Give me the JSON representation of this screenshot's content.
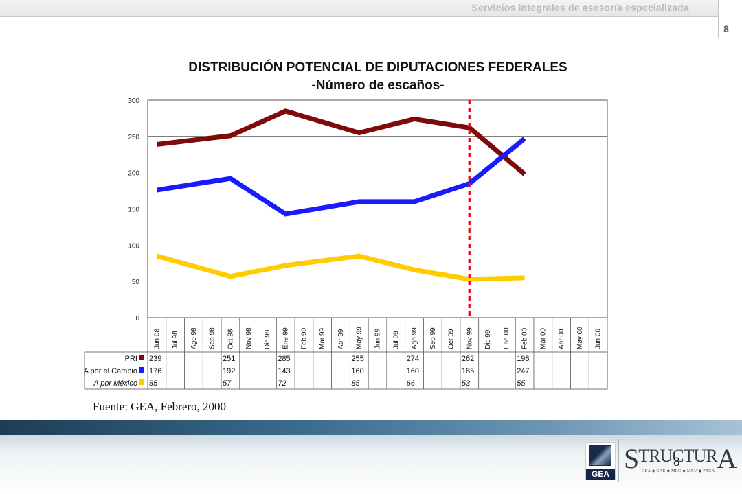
{
  "header": {
    "text": "Servicios integrales de asesoría especializada",
    "page_number": "8"
  },
  "chart_data": {
    "type": "line",
    "title": "DISTRIBUCIÓN POTENCIAL DE DIPUTACIONES FEDERALES",
    "subtitle": "-Número de escaños-",
    "categories": [
      "Jun 98",
      "Jul 98",
      "Ago 98",
      "Sep 98",
      "Oct 98",
      "Nov 98",
      "Dic 98",
      "Ene 99",
      "Feb 99",
      "Mar 99",
      "Abr 99",
      "May 99",
      "Jun 99",
      "Jul 99",
      "Ago 99",
      "Sep 99",
      "Oct 99",
      "Nov 99",
      "Dic 99",
      "Ene 00",
      "Feb 00",
      "Mar 00",
      "Abr 00",
      "May 00",
      "Jun 00"
    ],
    "ylim": [
      0,
      300
    ],
    "yticks": [
      "0",
      "50",
      "100",
      "150",
      "200",
      "250",
      "300"
    ],
    "gridline_y": 250,
    "series": [
      {
        "name": "PRI",
        "color": "#7f0a0a",
        "values": [
          239,
          null,
          null,
          null,
          251,
          null,
          null,
          285,
          null,
          null,
          null,
          255,
          null,
          null,
          274,
          null,
          null,
          262,
          null,
          null,
          198,
          null,
          null,
          null,
          null
        ]
      },
      {
        "name": "A por el Cambio",
        "color": "#1a1aff",
        "values": [
          176,
          null,
          null,
          null,
          192,
          null,
          null,
          143,
          null,
          null,
          null,
          160,
          null,
          null,
          160,
          null,
          null,
          185,
          null,
          null,
          247,
          null,
          null,
          null,
          null
        ]
      },
      {
        "name": "A por México",
        "color": "#ffcc00",
        "values": [
          85,
          null,
          null,
          null,
          57,
          null,
          null,
          72,
          null,
          null,
          null,
          85,
          null,
          null,
          66,
          null,
          null,
          53,
          null,
          null,
          55,
          null,
          null,
          null,
          null
        ]
      }
    ],
    "marker_category": "Nov 99",
    "marker_color": "#e8141e",
    "table_labels": [
      "PRI",
      "A por el Cambio",
      "A por México"
    ]
  },
  "source": "Fuente: GEA, Febrero, 2000",
  "logos": {
    "gea": "GEA",
    "structura_s": "S",
    "structura_mid": "TRUCTUR",
    "structura_a": "A",
    "structura_sub": "GEA ◆ GAE ◆ MRC ◆ MXV ◆ PRGA",
    "overlay_number": "8"
  }
}
